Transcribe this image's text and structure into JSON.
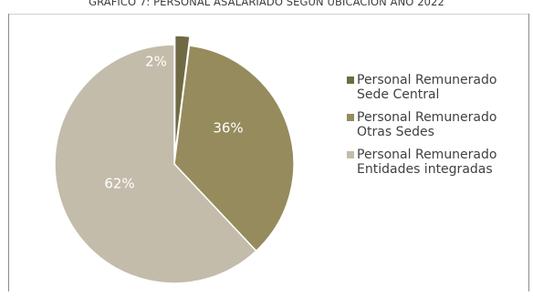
{
  "chart_data": {
    "type": "pie",
    "title": "GRÁFICO 7: PERSONAL ASALARIADO SEGÚN UBICACIÓN AÑO 2022",
    "slices": [
      {
        "label": "Personal Remunerado Sede Central",
        "value": 2,
        "value_label": "2%",
        "color": "#6f6a45",
        "exploded": true
      },
      {
        "label": "Personal Remunerado Otras Sedes",
        "value": 36,
        "value_label": "36%",
        "color": "#958b5c",
        "exploded": false
      },
      {
        "label": "Personal Remunerado Entidades integradas",
        "value": 62,
        "value_label": "62%",
        "color": "#c3bcab",
        "exploded": false
      }
    ],
    "legend_position": "right"
  }
}
